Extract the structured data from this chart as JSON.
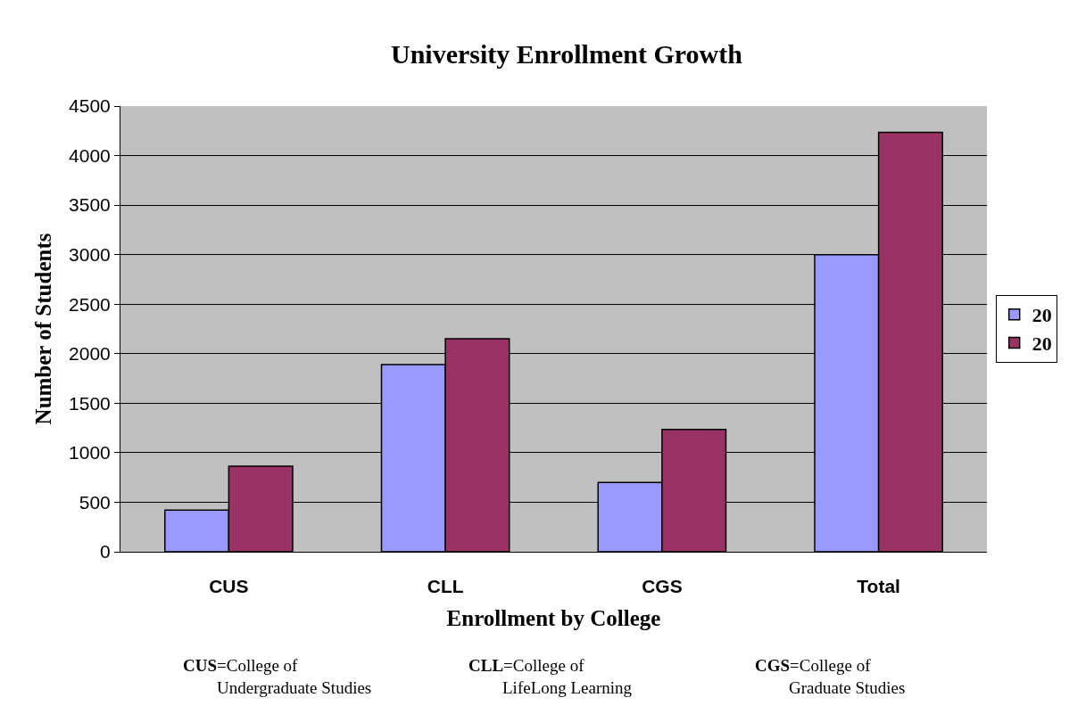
{
  "chart_data": {
    "type": "bar",
    "title": "University Enrollment Growth",
    "xlabel": "Enrollment by College",
    "ylabel": "Number of Students",
    "categories": [
      "CUS",
      "CLL",
      "CGS",
      "Total"
    ],
    "series": [
      {
        "name": "20",
        "color": "#9999ff",
        "values": [
          420,
          1890,
          700,
          3000
        ]
      },
      {
        "name": "20",
        "color": "#993366",
        "values": [
          865,
          2150,
          1235,
          4235
        ]
      }
    ],
    "ylim": [
      0,
      4500
    ],
    "yticks": [
      0,
      500,
      1000,
      1500,
      2000,
      2500,
      3000,
      3500,
      4000,
      4500
    ],
    "grid": "y",
    "legend": "right",
    "annotations": [
      "CUS=College of Undergraduate Studies",
      "CLL=College of LifeLong Learning",
      "CGS=College of Graduate Studies"
    ]
  }
}
